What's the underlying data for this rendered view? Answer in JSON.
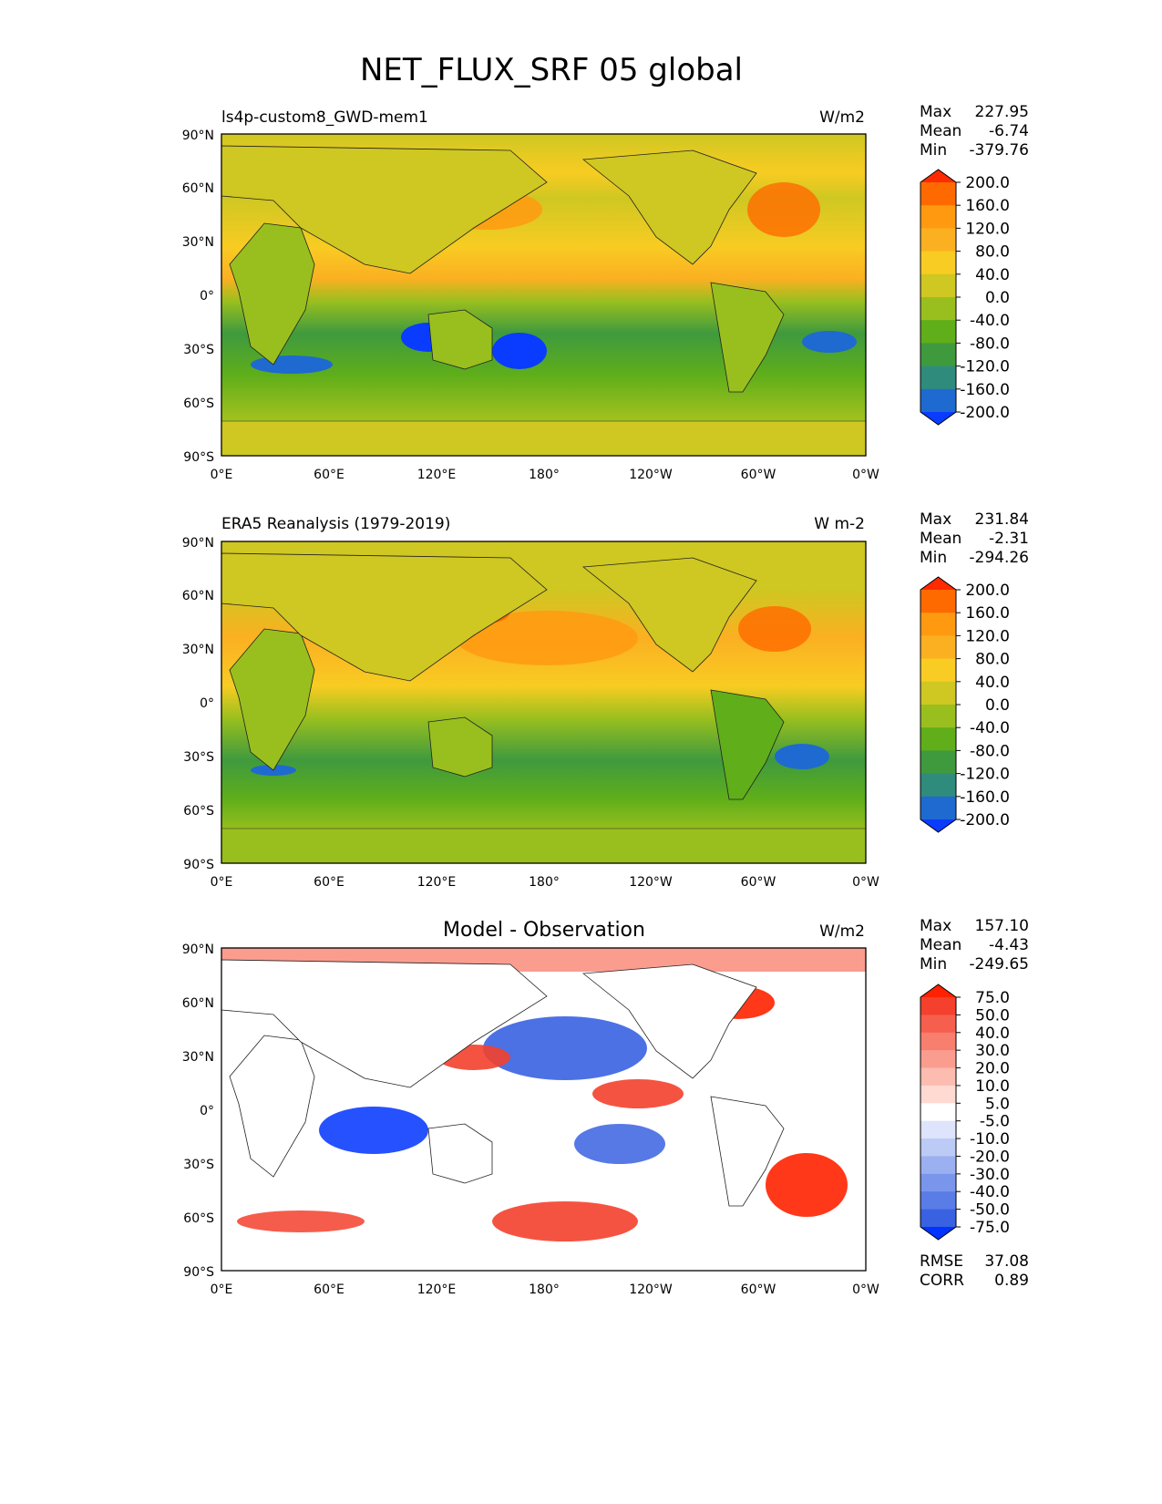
{
  "title": "NET_FLUX_SRF 05 global",
  "x_ticks": [
    "0°E",
    "60°E",
    "120°E",
    "180°",
    "120°W",
    "60°W",
    "0°W"
  ],
  "y_ticks": [
    "90°N",
    "60°N",
    "30°N",
    "0°",
    "30°S",
    "60°S",
    "90°S"
  ],
  "chart_data": [
    {
      "type": "heatmap",
      "subtitle": "ls4p-custom8_GWD-mem1",
      "units": "W/m2",
      "stats": {
        "max_label": "Max",
        "max": "227.95",
        "mean_label": "Mean",
        "mean": "-6.74",
        "min_label": "Min",
        "min": "-379.76"
      },
      "colorbar_levels": [
        "200.0",
        "160.0",
        "120.0",
        "80.0",
        "40.0",
        "0.0",
        "-40.0",
        "-80.0",
        "-120.0",
        "-160.0",
        "-200.0"
      ],
      "colorbar_colors": [
        "#ff2a00",
        "#ff6a00",
        "#ff9a10",
        "#fbb022",
        "#f8cc22",
        "#cfc722",
        "#99bf1e",
        "#5fae1a",
        "#3f9a3e",
        "#2f8c7c",
        "#1e6ad0",
        "#0a3cff"
      ],
      "x_range": [
        0,
        360
      ],
      "y_range": [
        -90,
        90
      ]
    },
    {
      "type": "heatmap",
      "subtitle": "ERA5 Reanalysis (1979-2019)",
      "units": "W m-2",
      "stats": {
        "max_label": "Max",
        "max": "231.84",
        "mean_label": "Mean",
        "mean": "-2.31",
        "min_label": "Min",
        "min": "-294.26"
      },
      "colorbar_levels": [
        "200.0",
        "160.0",
        "120.0",
        "80.0",
        "40.0",
        "0.0",
        "-40.0",
        "-80.0",
        "-120.0",
        "-160.0",
        "-200.0"
      ],
      "colorbar_colors": [
        "#ff2a00",
        "#ff6a00",
        "#ff9a10",
        "#fbb022",
        "#f8cc22",
        "#cfc722",
        "#99bf1e",
        "#5fae1a",
        "#3f9a3e",
        "#2f8c7c",
        "#1e6ad0",
        "#0a3cff"
      ],
      "x_range": [
        0,
        360
      ],
      "y_range": [
        -90,
        90
      ]
    },
    {
      "type": "heatmap",
      "subtitle": "Model - Observation",
      "units": "W/m2",
      "stats": {
        "max_label": "Max",
        "max": "157.10",
        "mean_label": "Mean",
        "mean": "-4.43",
        "min_label": "Min",
        "min": "-249.65"
      },
      "colorbar_levels": [
        "75.0",
        "50.0",
        "40.0",
        "30.0",
        "20.0",
        "10.0",
        "5.0",
        "-5.0",
        "-10.0",
        "-20.0",
        "-30.0",
        "-40.0",
        "-50.0",
        "-75.0"
      ],
      "colorbar_colors": [
        "#ff2200",
        "#f4402c",
        "#f65f4e",
        "#f87e6e",
        "#fa9d8f",
        "#fcbcb0",
        "#fedad2",
        "#ffffff",
        "#dde4fb",
        "#bccaf6",
        "#9bb0f1",
        "#7a96ec",
        "#597ce7",
        "#3862e2",
        "#0033ff"
      ],
      "x_range": [
        0,
        360
      ],
      "y_range": [
        -90,
        90
      ],
      "extra_stats": {
        "rmse_label": "RMSE",
        "rmse": "37.08",
        "corr_label": "CORR",
        "corr": "0.89"
      }
    }
  ]
}
